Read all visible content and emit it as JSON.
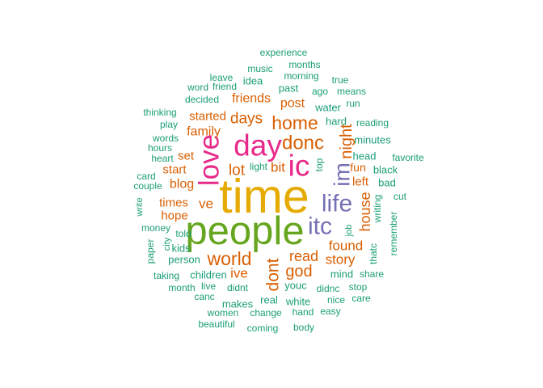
{
  "chart_data": {
    "type": "wordcloud",
    "title": "",
    "palette": {
      "teal": "#1b9e77",
      "orange": "#d95f02",
      "purple": "#7570b3",
      "magenta": "#e7298a",
      "green": "#66a61e",
      "gold": "#e6ab02"
    },
    "words": [
      {
        "text": "time",
        "freq": 100,
        "color": "gold",
        "rotate": false
      },
      {
        "text": "people",
        "freq": 82,
        "color": "green",
        "rotate": false
      },
      {
        "text": "day",
        "freq": 60,
        "color": "magenta",
        "rotate": false
      },
      {
        "text": "ic",
        "freq": 60,
        "color": "magenta",
        "rotate": false
      },
      {
        "text": "love",
        "freq": 56,
        "color": "magenta",
        "rotate": true
      },
      {
        "text": "life",
        "freq": 46,
        "color": "purple",
        "rotate": false
      },
      {
        "text": "itc",
        "freq": 46,
        "color": "purple",
        "rotate": false
      },
      {
        "text": "im",
        "freq": 42,
        "color": "purple",
        "rotate": true
      },
      {
        "text": "donc",
        "freq": 36,
        "color": "orange",
        "rotate": false
      },
      {
        "text": "home",
        "freq": 33,
        "color": "orange",
        "rotate": false
      },
      {
        "text": "world",
        "freq": 33,
        "color": "orange",
        "rotate": false
      },
      {
        "text": "dont",
        "freq": 30,
        "color": "orange",
        "rotate": true
      },
      {
        "text": "god",
        "freq": 27,
        "color": "orange",
        "rotate": false
      },
      {
        "text": "night",
        "freq": 27,
        "color": "orange",
        "rotate": true
      },
      {
        "text": "days",
        "freq": 25,
        "color": "orange",
        "rotate": false
      },
      {
        "text": "lot",
        "freq": 25,
        "color": "orange",
        "rotate": false
      },
      {
        "text": "read",
        "freq": 24,
        "color": "orange",
        "rotate": false
      },
      {
        "text": "house",
        "freq": 24,
        "color": "orange",
        "rotate": true
      },
      {
        "text": "found",
        "freq": 23,
        "color": "orange",
        "rotate": false
      },
      {
        "text": "bit",
        "freq": 22,
        "color": "orange",
        "rotate": false
      },
      {
        "text": "ve",
        "freq": 22,
        "color": "orange",
        "rotate": false
      },
      {
        "text": "ive",
        "freq": 22,
        "color": "orange",
        "rotate": false
      },
      {
        "text": "story",
        "freq": 22,
        "color": "orange",
        "rotate": false
      },
      {
        "text": "family",
        "freq": 21,
        "color": "orange",
        "rotate": false
      },
      {
        "text": "friends",
        "freq": 21,
        "color": "orange",
        "rotate": false
      },
      {
        "text": "post",
        "freq": 20,
        "color": "orange",
        "rotate": false
      },
      {
        "text": "blog",
        "freq": 20,
        "color": "orange",
        "rotate": false
      },
      {
        "text": "started",
        "freq": 19,
        "color": "orange",
        "rotate": false
      },
      {
        "text": "times",
        "freq": 19,
        "color": "orange",
        "rotate": false
      },
      {
        "text": "hope",
        "freq": 18,
        "color": "orange",
        "rotate": false
      },
      {
        "text": "start",
        "freq": 18,
        "color": "orange",
        "rotate": false
      },
      {
        "text": "set",
        "freq": 18,
        "color": "orange",
        "rotate": false
      },
      {
        "text": "left",
        "freq": 18,
        "color": "orange",
        "rotate": false
      },
      {
        "text": "fun",
        "freq": 17,
        "color": "orange",
        "rotate": false
      },
      {
        "text": "youc",
        "freq": 15,
        "color": "teal",
        "rotate": false
      },
      {
        "text": "children",
        "freq": 15,
        "color": "teal",
        "rotate": false
      },
      {
        "text": "real",
        "freq": 15,
        "color": "teal",
        "rotate": false
      },
      {
        "text": "white",
        "freq": 15,
        "color": "teal",
        "rotate": false
      },
      {
        "text": "makes",
        "freq": 15,
        "color": "teal",
        "rotate": false
      },
      {
        "text": "hard",
        "freq": 14,
        "color": "teal",
        "rotate": false
      },
      {
        "text": "minutes",
        "freq": 14,
        "color": "teal",
        "rotate": false
      },
      {
        "text": "head",
        "freq": 14,
        "color": "teal",
        "rotate": false
      },
      {
        "text": "black",
        "freq": 14,
        "color": "teal",
        "rotate": false
      },
      {
        "text": "bad",
        "freq": 14,
        "color": "teal",
        "rotate": false
      },
      {
        "text": "mind",
        "freq": 14,
        "color": "teal",
        "rotate": false
      },
      {
        "text": "person",
        "freq": 14,
        "color": "teal",
        "rotate": false
      },
      {
        "text": "kids",
        "freq": 14,
        "color": "teal",
        "rotate": false
      },
      {
        "text": "water",
        "freq": 14,
        "color": "teal",
        "rotate": false
      },
      {
        "text": "past",
        "freq": 14,
        "color": "teal",
        "rotate": false
      },
      {
        "text": "idea",
        "freq": 14,
        "color": "teal",
        "rotate": false
      },
      {
        "text": "music",
        "freq": 13,
        "color": "teal",
        "rotate": false
      },
      {
        "text": "decided",
        "freq": 13,
        "color": "teal",
        "rotate": false
      },
      {
        "text": "ago",
        "freq": 13,
        "color": "teal",
        "rotate": false
      },
      {
        "text": "months",
        "freq": 13,
        "color": "teal",
        "rotate": false
      },
      {
        "text": "morning",
        "freq": 13,
        "color": "teal",
        "rotate": false
      },
      {
        "text": "reading",
        "freq": 13,
        "color": "teal",
        "rotate": false
      },
      {
        "text": "means",
        "freq": 13,
        "color": "teal",
        "rotate": false
      },
      {
        "text": "run",
        "freq": 13,
        "color": "teal",
        "rotate": false
      },
      {
        "text": "true",
        "freq": 12,
        "color": "teal",
        "rotate": false
      },
      {
        "text": "friend",
        "freq": 12,
        "color": "teal",
        "rotate": false
      },
      {
        "text": "leave",
        "freq": 12,
        "color": "teal",
        "rotate": false
      },
      {
        "text": "word",
        "freq": 12,
        "color": "teal",
        "rotate": false
      },
      {
        "text": "experience",
        "freq": 12,
        "color": "teal",
        "rotate": false
      },
      {
        "text": "thinking",
        "freq": 12,
        "color": "teal",
        "rotate": false
      },
      {
        "text": "play",
        "freq": 12,
        "color": "teal",
        "rotate": false
      },
      {
        "text": "words",
        "freq": 12,
        "color": "teal",
        "rotate": false
      },
      {
        "text": "hours",
        "freq": 12,
        "color": "teal",
        "rotate": false
      },
      {
        "text": "heart",
        "freq": 12,
        "color": "teal",
        "rotate": false
      },
      {
        "text": "card",
        "freq": 12,
        "color": "teal",
        "rotate": false
      },
      {
        "text": "couple",
        "freq": 12,
        "color": "teal",
        "rotate": false
      },
      {
        "text": "light",
        "freq": 12,
        "color": "teal",
        "rotate": false
      },
      {
        "text": "top",
        "freq": 12,
        "color": "teal",
        "rotate": true
      },
      {
        "text": "favorite",
        "freq": 12,
        "color": "teal",
        "rotate": false
      },
      {
        "text": "cut",
        "freq": 12,
        "color": "teal",
        "rotate": false
      },
      {
        "text": "writing",
        "freq": 12,
        "color": "teal",
        "rotate": true
      },
      {
        "text": "remember",
        "freq": 12,
        "color": "teal",
        "rotate": true
      },
      {
        "text": "thatc",
        "freq": 12,
        "color": "teal",
        "rotate": true
      },
      {
        "text": "job",
        "freq": 11,
        "color": "teal",
        "rotate": true
      },
      {
        "text": "share",
        "freq": 12,
        "color": "teal",
        "rotate": false
      },
      {
        "text": "stop",
        "freq": 12,
        "color": "teal",
        "rotate": false
      },
      {
        "text": "care",
        "freq": 12,
        "color": "teal",
        "rotate": false
      },
      {
        "text": "nice",
        "freq": 12,
        "color": "teal",
        "rotate": false
      },
      {
        "text": "easy",
        "freq": 12,
        "color": "teal",
        "rotate": false
      },
      {
        "text": "didnc",
        "freq": 12,
        "color": "teal",
        "rotate": false
      },
      {
        "text": "didnt",
        "freq": 12,
        "color": "teal",
        "rotate": false
      },
      {
        "text": "change",
        "freq": 12,
        "color": "teal",
        "rotate": false
      },
      {
        "text": "hand",
        "freq": 12,
        "color": "teal",
        "rotate": false
      },
      {
        "text": "body",
        "freq": 12,
        "color": "teal",
        "rotate": false
      },
      {
        "text": "coming",
        "freq": 12,
        "color": "teal",
        "rotate": false
      },
      {
        "text": "beautiful",
        "freq": 12,
        "color": "teal",
        "rotate": false
      },
      {
        "text": "women",
        "freq": 12,
        "color": "teal",
        "rotate": false
      },
      {
        "text": "canc",
        "freq": 12,
        "color": "teal",
        "rotate": false
      },
      {
        "text": "live",
        "freq": 12,
        "color": "teal",
        "rotate": false
      },
      {
        "text": "month",
        "freq": 12,
        "color": "teal",
        "rotate": false
      },
      {
        "text": "taking",
        "freq": 12,
        "color": "teal",
        "rotate": false
      },
      {
        "text": "paper",
        "freq": 12,
        "color": "teal",
        "rotate": true
      },
      {
        "text": "city",
        "freq": 11,
        "color": "teal",
        "rotate": true
      },
      {
        "text": "money",
        "freq": 12,
        "color": "teal",
        "rotate": false
      },
      {
        "text": "told",
        "freq": 12,
        "color": "teal",
        "rotate": false
      },
      {
        "text": "write",
        "freq": 11,
        "color": "teal",
        "rotate": true
      }
    ]
  }
}
